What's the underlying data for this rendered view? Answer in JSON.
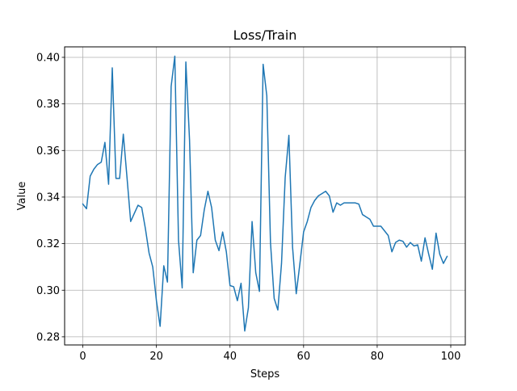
{
  "chart_data": {
    "type": "line",
    "title": "Loss/Train",
    "xlabel": "Steps",
    "ylabel": "Value",
    "xlim": [
      -4.95,
      103.95
    ],
    "ylim": [
      0.2765,
      0.4045
    ],
    "grid": true,
    "x_ticks": [
      0,
      20,
      40,
      60,
      80,
      100
    ],
    "y_ticks": [
      0.28,
      0.3,
      0.32,
      0.34,
      0.36,
      0.38,
      0.4
    ],
    "x_tick_labels": [
      "0",
      "20",
      "40",
      "60",
      "80",
      "100"
    ],
    "y_tick_labels": [
      "0.28",
      "0.30",
      "0.32",
      "0.34",
      "0.36",
      "0.38",
      "0.40"
    ],
    "colors": {
      "line": "#1f77b4",
      "grid": "#b0b0b0",
      "axes": "#000000"
    },
    "series": [
      {
        "name": "Loss/Train",
        "x": [
          0,
          1,
          2,
          3,
          4,
          5,
          6,
          7,
          8,
          9,
          10,
          11,
          12,
          13,
          14,
          15,
          16,
          17,
          18,
          19,
          20,
          21,
          22,
          23,
          24,
          25,
          26,
          27,
          28,
          29,
          30,
          31,
          32,
          33,
          34,
          35,
          36,
          37,
          38,
          39,
          40,
          41,
          42,
          43,
          44,
          45,
          46,
          47,
          48,
          49,
          50,
          51,
          52,
          53,
          54,
          55,
          56,
          57,
          58,
          59,
          60,
          61,
          62,
          63,
          64,
          65,
          66,
          67,
          68,
          69,
          70,
          71,
          72,
          73,
          74,
          75,
          76,
          77,
          78,
          79,
          80,
          81,
          82,
          83,
          84,
          85,
          86,
          87,
          88,
          89,
          90,
          91,
          92,
          93,
          94,
          95,
          96,
          97,
          98,
          99
        ],
        "values": [
          0.337,
          0.335,
          0.349,
          0.352,
          0.354,
          0.355,
          0.3635,
          0.3455,
          0.3955,
          0.348,
          0.348,
          0.367,
          0.3485,
          0.3295,
          0.333,
          0.3365,
          0.3355,
          0.3265,
          0.316,
          0.31,
          0.2955,
          0.2845,
          0.3105,
          0.3035,
          0.3875,
          0.4005,
          0.3215,
          0.301,
          0.398,
          0.3645,
          0.3075,
          0.3215,
          0.3235,
          0.3345,
          0.3425,
          0.3355,
          0.3215,
          0.317,
          0.325,
          0.3165,
          0.302,
          0.3015,
          0.2955,
          0.303,
          0.2825,
          0.2925,
          0.3295,
          0.3075,
          0.2995,
          0.397,
          0.3835,
          0.3205,
          0.2965,
          0.2915,
          0.3115,
          0.3485,
          0.3665,
          0.3185,
          0.2985,
          0.3115,
          0.325,
          0.3295,
          0.3355,
          0.3385,
          0.3405,
          0.3415,
          0.3425,
          0.3405,
          0.3335,
          0.3375,
          0.3365,
          0.3375,
          0.3375,
          0.3375,
          0.3375,
          0.337,
          0.3325,
          0.3315,
          0.3305,
          0.3275,
          0.3275,
          0.3275,
          0.3255,
          0.3235,
          0.3165,
          0.3205,
          0.3215,
          0.321,
          0.3185,
          0.3205,
          0.319,
          0.3195,
          0.3125,
          0.3225,
          0.3155,
          0.309,
          0.3245,
          0.3155,
          0.3115,
          0.3145
        ]
      }
    ]
  }
}
